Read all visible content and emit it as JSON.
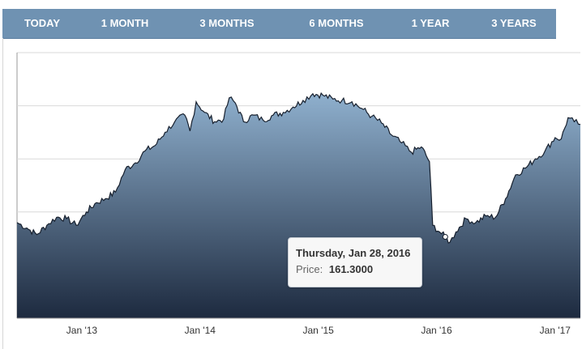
{
  "tabs": [
    {
      "label": "TODAY",
      "name": "tab-today"
    },
    {
      "label": "1 MONTH",
      "name": "tab-1-month"
    },
    {
      "label": "3 MONTHS",
      "name": "tab-3-months"
    },
    {
      "label": "6 MONTHS",
      "name": "tab-6-months"
    },
    {
      "label": "1 YEAR",
      "name": "tab-1-year"
    },
    {
      "label": "3 YEARS",
      "name": "tab-3-years"
    }
  ],
  "colors": {
    "tab_bar": "#6f92b2",
    "area_top": "#8fb0ce",
    "area_bottom": "#1d2a3f",
    "line": "#17202e",
    "grid": "#d9d9d9"
  },
  "tooltip": {
    "date": "Thursday, Jan 28, 2016",
    "price_label": "Price:",
    "price_value": "161.3000"
  },
  "chart_data": {
    "type": "area",
    "grid": true,
    "xlim": [
      "2012-06-15",
      "2017-03-20"
    ],
    "ylim": [
      100,
      300
    ],
    "x_ticks": [
      {
        "date": "2013-01-01",
        "label": "Jan '13"
      },
      {
        "date": "2014-01-01",
        "label": "Jan '14"
      },
      {
        "date": "2015-01-01",
        "label": "Jan '15"
      },
      {
        "date": "2016-01-01",
        "label": "Jan '16"
      },
      {
        "date": "2017-01-01",
        "label": "Jan '17"
      }
    ],
    "y_gridlines": [
      140,
      180,
      220,
      260
    ],
    "series": [
      {
        "points": [
          [
            "2012-06-15",
            172
          ],
          [
            "2012-07-15",
            168
          ],
          [
            "2012-08-15",
            163
          ],
          [
            "2012-09-15",
            170
          ],
          [
            "2012-10-15",
            176
          ],
          [
            "2012-11-15",
            175
          ],
          [
            "2012-12-15",
            170
          ],
          [
            "2013-01-15",
            180
          ],
          [
            "2013-02-15",
            187
          ],
          [
            "2013-03-15",
            190
          ],
          [
            "2013-04-15",
            195
          ],
          [
            "2013-05-15",
            212
          ],
          [
            "2013-06-15",
            217
          ],
          [
            "2013-07-15",
            226
          ],
          [
            "2013-08-15",
            230
          ],
          [
            "2013-09-15",
            240
          ],
          [
            "2013-10-15",
            248
          ],
          [
            "2013-11-15",
            253
          ],
          [
            "2013-12-01",
            241
          ],
          [
            "2013-12-20",
            263
          ],
          [
            "2014-01-15",
            255
          ],
          [
            "2014-02-15",
            248
          ],
          [
            "2014-03-15",
            250
          ],
          [
            "2014-04-01",
            266
          ],
          [
            "2014-04-20",
            262
          ],
          [
            "2014-05-15",
            248
          ],
          [
            "2014-06-15",
            253
          ],
          [
            "2014-07-15",
            249
          ],
          [
            "2014-08-15",
            253
          ],
          [
            "2014-09-15",
            255
          ],
          [
            "2014-10-15",
            259
          ],
          [
            "2014-11-15",
            264
          ],
          [
            "2014-12-15",
            269
          ],
          [
            "2015-01-15",
            268
          ],
          [
            "2015-02-15",
            265
          ],
          [
            "2015-03-15",
            264
          ],
          [
            "2015-04-15",
            263
          ],
          [
            "2015-05-15",
            258
          ],
          [
            "2015-06-15",
            252
          ],
          [
            "2015-07-15",
            247
          ],
          [
            "2015-08-15",
            238
          ],
          [
            "2015-09-15",
            232
          ],
          [
            "2015-10-15",
            225
          ],
          [
            "2015-11-15",
            229
          ],
          [
            "2015-12-10",
            218
          ],
          [
            "2015-12-20",
            170
          ],
          [
            "2016-01-10",
            165
          ],
          [
            "2016-01-28",
            161.3
          ],
          [
            "2016-02-11",
            157
          ],
          [
            "2016-03-01",
            165
          ],
          [
            "2016-04-01",
            175
          ],
          [
            "2016-05-01",
            172
          ],
          [
            "2016-06-01",
            177
          ],
          [
            "2016-07-01",
            176
          ],
          [
            "2016-08-01",
            190
          ],
          [
            "2016-09-01",
            208
          ],
          [
            "2016-10-01",
            213
          ],
          [
            "2016-11-01",
            220
          ],
          [
            "2016-12-01",
            226
          ],
          [
            "2017-01-01",
            236
          ],
          [
            "2017-01-20",
            235
          ],
          [
            "2017-02-10",
            251
          ],
          [
            "2017-03-01",
            248
          ],
          [
            "2017-03-20",
            246
          ]
        ]
      }
    ]
  }
}
